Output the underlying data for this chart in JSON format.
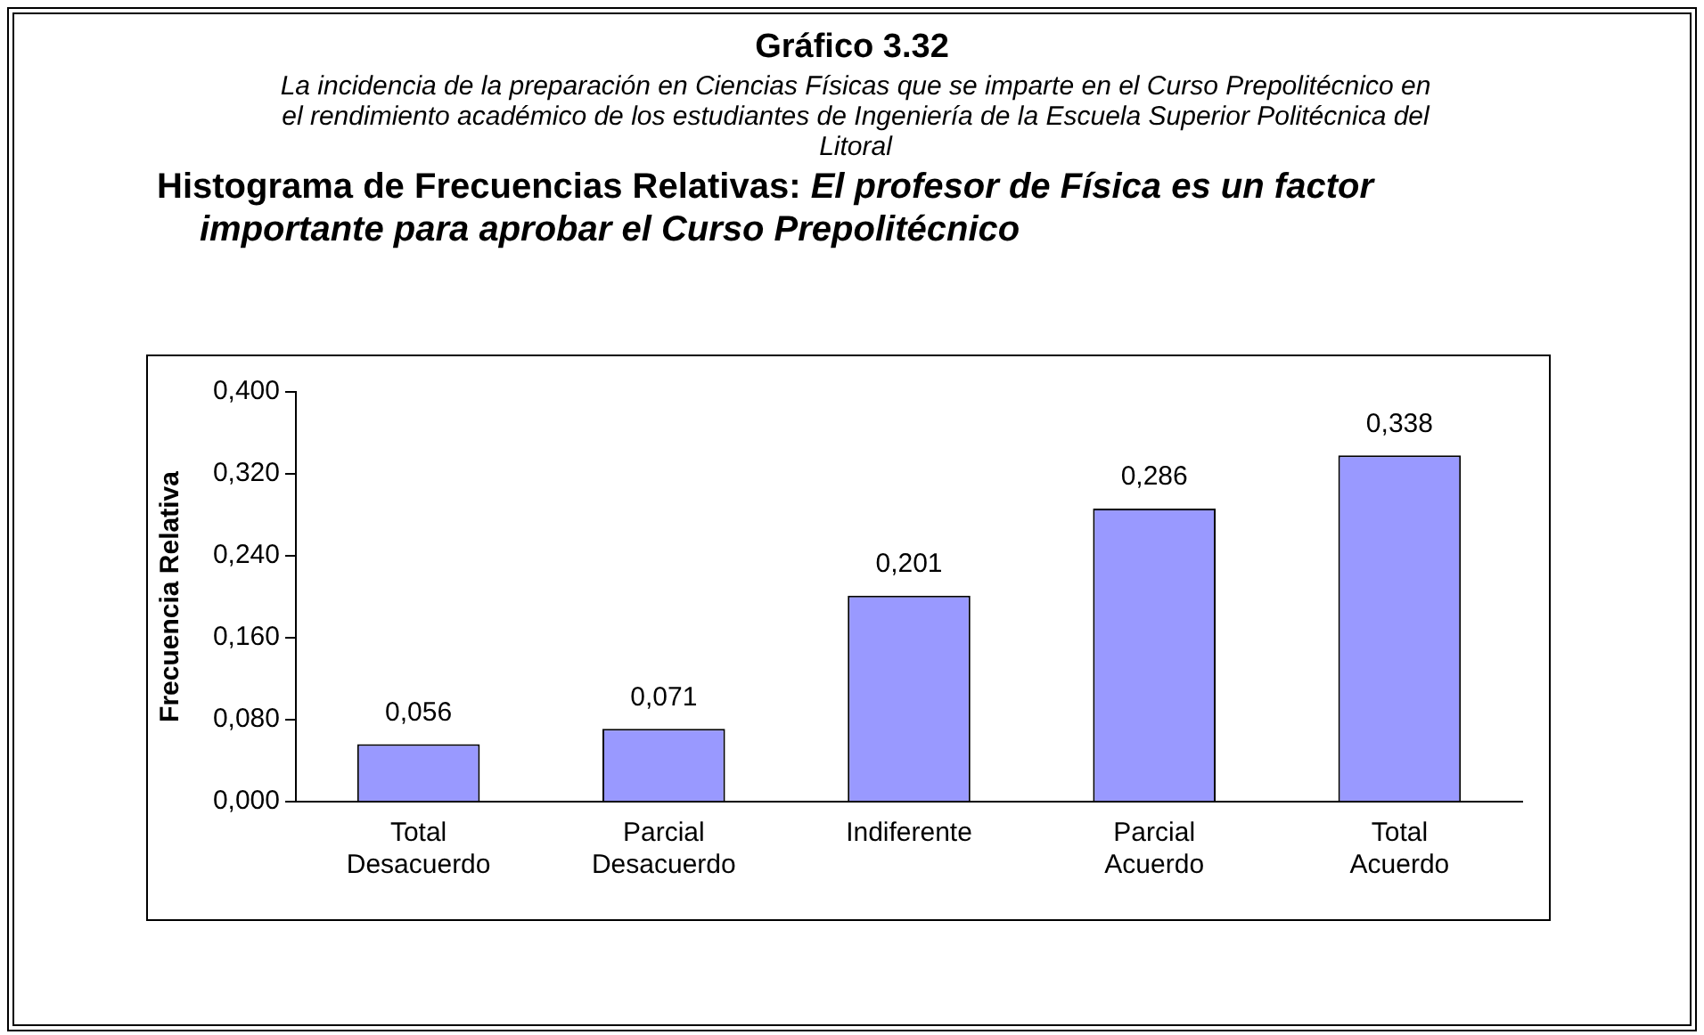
{
  "chart_data": {
    "type": "bar",
    "title": "Gráfico 3.32",
    "subtitle": "La incidencia de la preparación en Ciencias Físicas que se imparte en el Curso Prepolitécnico en el rendimiento académico de los estudiantes de Ingeniería de la Escuela Superior Politécnica del Litoral",
    "annotations": [
      "Histograma de Frecuencias Relativas: El profesor de Física es un factor importante para aprobar el Curso Prepolitécnico"
    ],
    "ylabel": "Frecuencia Relativa",
    "categories": [
      "Total Desacuerdo",
      "Parcial Desacuerdo",
      "Indiferente",
      "Parcial Acuerdo",
      "Total Acuerdo"
    ],
    "values": [
      0.056,
      0.071,
      0.201,
      0.286,
      0.338
    ],
    "value_labels": [
      "0,056",
      "0,071",
      "0,201",
      "0,286",
      "0,338"
    ],
    "color": "#9999ff",
    "ylim": [
      0,
      0.4
    ],
    "yticks": [
      {
        "value": 0,
        "label": "0,000"
      },
      {
        "value": 0.08,
        "label": "0,080"
      },
      {
        "value": 0.16,
        "label": "0,160"
      },
      {
        "value": 0.24,
        "label": "0,240"
      },
      {
        "value": 0.32,
        "label": "0,320"
      },
      {
        "value": 0.4,
        "label": "0,400"
      }
    ],
    "grid": false,
    "legend": false
  }
}
